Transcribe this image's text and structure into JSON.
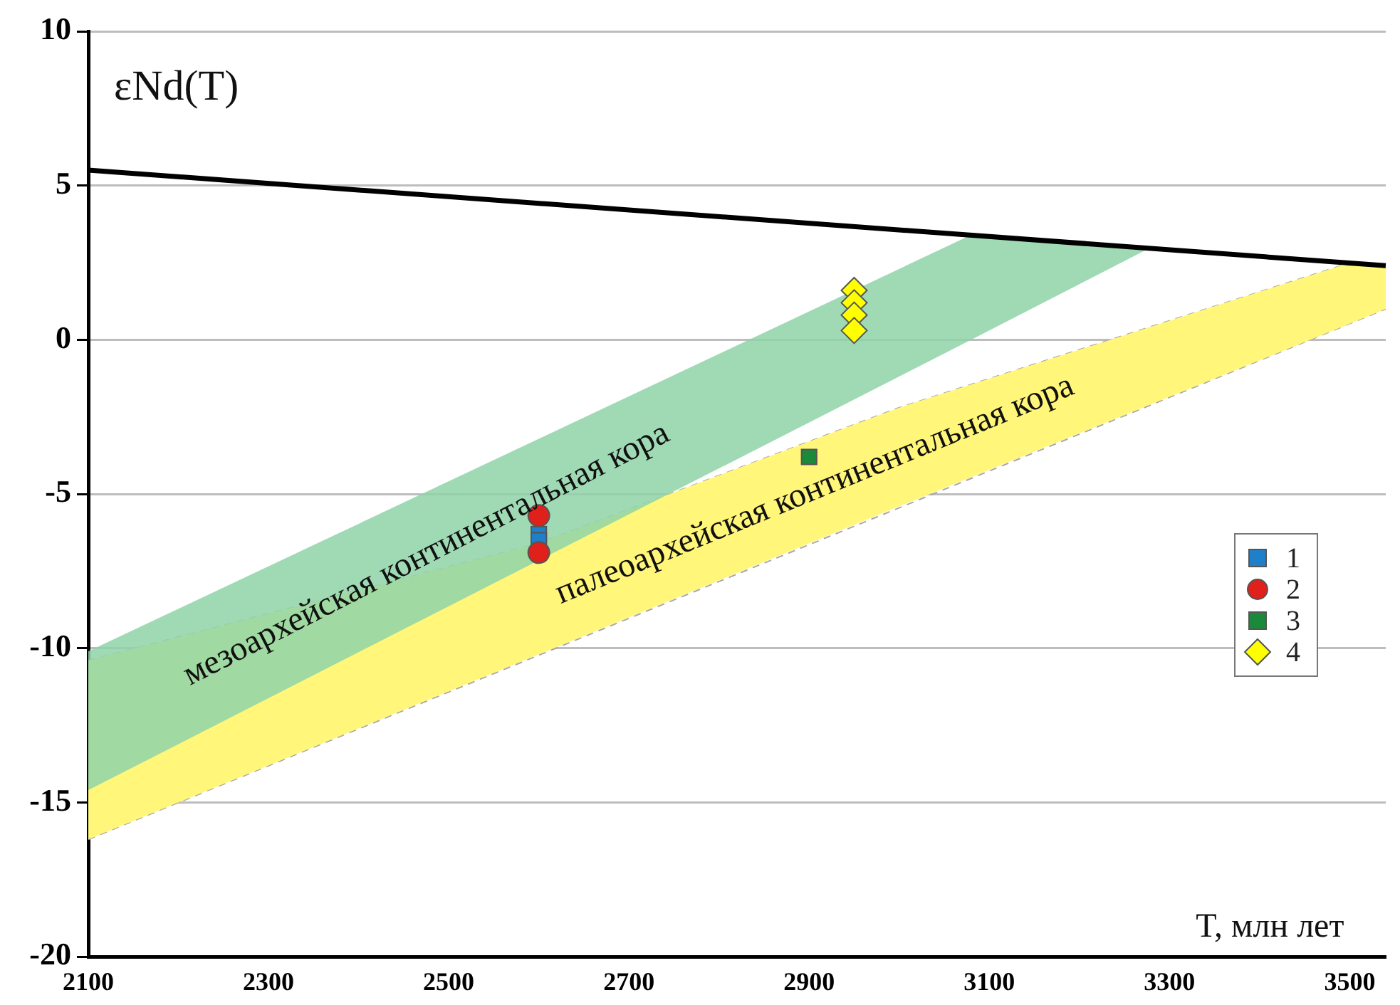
{
  "chart_data": {
    "type": "scatter",
    "xlabel": "T, млн лет",
    "ylabel": "εNd(T)",
    "xlim": [
      2100,
      3540
    ],
    "xticks": [
      2100,
      2300,
      2500,
      2700,
      2900,
      3100,
      3300,
      3500
    ],
    "ylim": [
      -20,
      10
    ],
    "yticks": [
      -20,
      -15,
      -10,
      -5,
      0,
      5,
      10
    ],
    "grid": "y",
    "legend": "right",
    "annotations": [
      "мезоархейская континентальная кора",
      "палеоархейская континентальная кора"
    ],
    "series": [
      {
        "type": "line",
        "color": "#a8a8a8",
        "line_style": "dashed",
        "x": [
          2100,
          2600,
          3000,
          3490,
          3540
        ],
        "values": [
          -10.4,
          -6.6,
          -2.2,
          2.4,
          2.4
        ]
      },
      {
        "type": "line",
        "color": "#a8a8a8",
        "line_style": "dashed",
        "x": [
          2100,
          3540
        ],
        "values": [
          -16.2,
          1.0
        ]
      },
      {
        "type": "line",
        "color": "#fff67a",
        "x": [
          2100,
          2600,
          3000,
          3490,
          3540
        ],
        "values": [
          null,
          null,
          null,
          null,
          null
        ],
        "upper": [
          -10.4,
          -6.6,
          -2.2,
          2.4,
          2.4
        ],
        "lower": [
          -16.2,
          -10.2,
          -5.4,
          0.4,
          1.0
        ]
      },
      {
        "type": "line",
        "color": "#8fd4a8",
        "x": [
          2100,
          3080,
          3273
        ],
        "values": [
          null,
          null,
          null
        ],
        "upper": [
          -10.1,
          3.4,
          2.9
        ],
        "lower": [
          -14.6,
          0.0,
          2.9
        ]
      },
      {
        "type": "line",
        "color": "#000000",
        "x": [
          2100,
          3540
        ],
        "values": [
          5.5,
          2.4
        ]
      },
      {
        "name": "1",
        "color": "#1f7fc9",
        "marker": "square",
        "x": [
          2600,
          2600
        ],
        "values": [
          -6.3,
          -6.5
        ]
      },
      {
        "name": "2",
        "color": "#e0201b",
        "marker": "circle",
        "x": [
          2600,
          2600
        ],
        "values": [
          -5.7,
          -6.9
        ]
      },
      {
        "name": "3",
        "color": "#1a8a3a",
        "marker": "square",
        "x": [
          2900
        ],
        "values": [
          -3.8
        ]
      },
      {
        "name": "4",
        "color": "#ffff00",
        "marker": "diamond",
        "x": [
          2950,
          2950,
          2950,
          2950
        ],
        "values": [
          1.6,
          1.2,
          0.8,
          0.3
        ]
      }
    ]
  }
}
